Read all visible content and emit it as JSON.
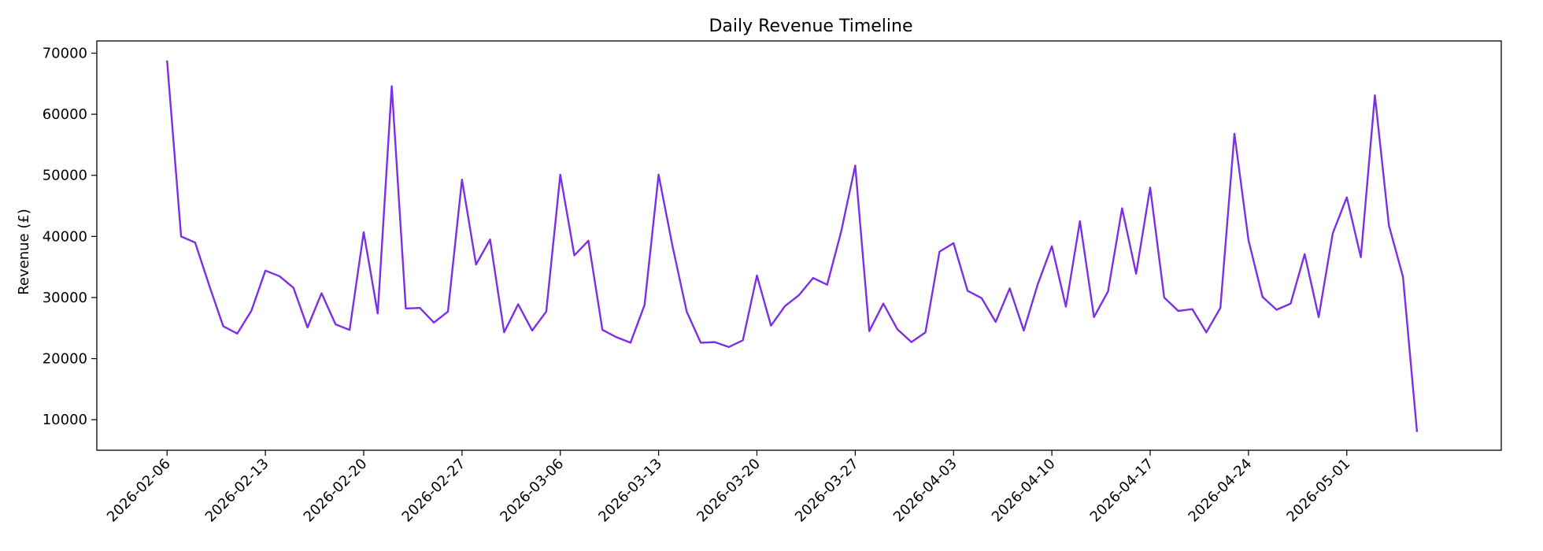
{
  "chart_data": {
    "type": "line",
    "title": "Daily Revenue Timeline",
    "xlabel": "",
    "ylabel": "Revenue (£)",
    "x_ticks": [
      "2026-02-06",
      "2026-02-13",
      "2026-02-20",
      "2026-02-27",
      "2026-03-06",
      "2026-03-13",
      "2026-03-20",
      "2026-03-27",
      "2026-04-03",
      "2026-04-10",
      "2026-04-17",
      "2026-04-24",
      "2026-05-01"
    ],
    "y_ticks": [
      10000,
      20000,
      30000,
      40000,
      50000,
      60000,
      70000
    ],
    "x_range": [
      "2026-02-01",
      "2026-05-12"
    ],
    "ylim": [
      5000,
      72000
    ],
    "grid": false,
    "line_color": "#7b2fe6",
    "series": [
      {
        "x": [
          "2026-02-06",
          "2026-02-07",
          "2026-02-08",
          "2026-02-09",
          "2026-02-10",
          "2026-02-11",
          "2026-02-12",
          "2026-02-13",
          "2026-02-14",
          "2026-02-15",
          "2026-02-16",
          "2026-02-17",
          "2026-02-18",
          "2026-02-19",
          "2026-02-20",
          "2026-02-21",
          "2026-02-22",
          "2026-02-23",
          "2026-02-24",
          "2026-02-25",
          "2026-02-26",
          "2026-02-27",
          "2026-02-28",
          "2026-03-01",
          "2026-03-02",
          "2026-03-03",
          "2026-03-04",
          "2026-03-05",
          "2026-03-06",
          "2026-03-07",
          "2026-03-08",
          "2026-03-09",
          "2026-03-10",
          "2026-03-11",
          "2026-03-12",
          "2026-03-13",
          "2026-03-14",
          "2026-03-15",
          "2026-03-16",
          "2026-03-17",
          "2026-03-18",
          "2026-03-19",
          "2026-03-20",
          "2026-03-21",
          "2026-03-22",
          "2026-03-23",
          "2026-03-24",
          "2026-03-25",
          "2026-03-26",
          "2026-03-27",
          "2026-03-28",
          "2026-03-29",
          "2026-03-30",
          "2026-03-31",
          "2026-04-01",
          "2026-04-02",
          "2026-04-03",
          "2026-04-04",
          "2026-04-05",
          "2026-04-06",
          "2026-04-07",
          "2026-04-08",
          "2026-04-09",
          "2026-04-10",
          "2026-04-11",
          "2026-04-12",
          "2026-04-13",
          "2026-04-14",
          "2026-04-15",
          "2026-04-16",
          "2026-04-17",
          "2026-04-18",
          "2026-04-19",
          "2026-04-20",
          "2026-04-21",
          "2026-04-22",
          "2026-04-23",
          "2026-04-24",
          "2026-04-25",
          "2026-04-26",
          "2026-04-27",
          "2026-04-28",
          "2026-04-29",
          "2026-04-30",
          "2026-05-01",
          "2026-05-02",
          "2026-05-03",
          "2026-05-04",
          "2026-05-05",
          "2026-05-06"
        ],
        "values": [
          68800,
          40000,
          39000,
          32000,
          25300,
          24100,
          27800,
          34400,
          33500,
          31600,
          25100,
          30700,
          25600,
          24700,
          40700,
          27400,
          64600,
          28200,
          28300,
          25900,
          27700,
          49300,
          35400,
          39500,
          24300,
          28900,
          24600,
          27700,
          50100,
          36900,
          39300,
          24700,
          23500,
          22600,
          28800,
          50100,
          38300,
          27700,
          22600,
          22700,
          21900,
          23000,
          33600,
          25400,
          28600,
          30400,
          33200,
          32100,
          40800,
          51600,
          24500,
          29000,
          24800,
          22700,
          24300,
          37500,
          38900,
          31100,
          29900,
          26000,
          31500,
          24600,
          32200,
          38400,
          28500,
          42500,
          26800,
          31000,
          44600,
          33900,
          48000,
          30000,
          27800,
          28100,
          24300,
          28300,
          56800,
          39400,
          30100,
          28000,
          29000,
          37100,
          26800,
          40500,
          46400,
          36600,
          63100,
          41800,
          33400,
          8000
        ]
      }
    ]
  }
}
